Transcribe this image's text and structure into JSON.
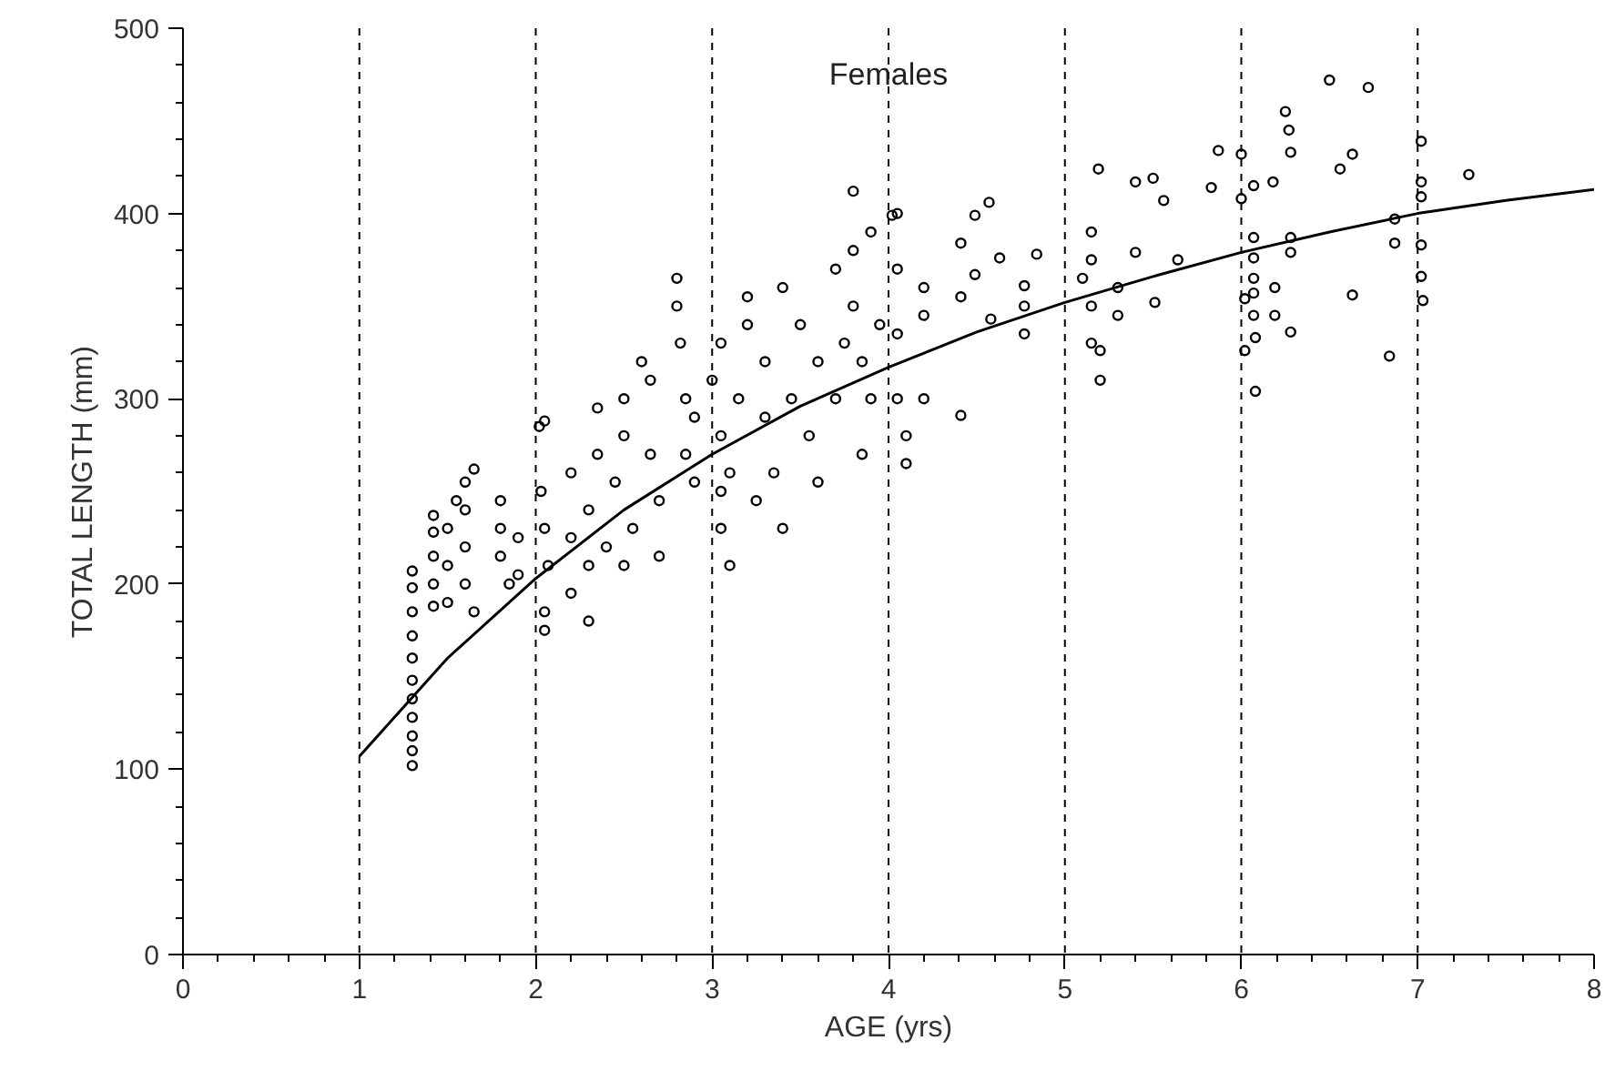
{
  "chart_data": {
    "type": "scatter",
    "title": "Females",
    "xlabel": "AGE (yrs)",
    "ylabel": "TOTAL LENGTH (mm)",
    "xlim": [
      0,
      8
    ],
    "ylim": [
      0,
      500
    ],
    "xticks": [
      0,
      {
        "value": 0.2,
        "label": null
      },
      {
        "value": 0.4,
        "label": null
      },
      {
        "value": 0.6,
        "label": null
      },
      {
        "value": 0.8,
        "label": null
      },
      1,
      {
        "value": 1.2,
        "label": null
      },
      {
        "value": 1.4,
        "label": null
      },
      {
        "value": 1.6,
        "label": null
      },
      {
        "value": 1.8,
        "label": null
      },
      2,
      {
        "value": 2.2,
        "label": null
      },
      {
        "value": 2.4,
        "label": null
      },
      {
        "value": 2.6,
        "label": null
      },
      {
        "value": 2.8,
        "label": null
      },
      3,
      {
        "value": 3.2,
        "label": null
      },
      {
        "value": 3.4,
        "label": null
      },
      {
        "value": 3.6,
        "label": null
      },
      {
        "value": 3.8,
        "label": null
      },
      4,
      {
        "value": 4.2,
        "label": null
      },
      {
        "value": 4.4,
        "label": null
      },
      {
        "value": 4.6,
        "label": null
      },
      {
        "value": 4.8,
        "label": null
      },
      5,
      {
        "value": 5.2,
        "label": null
      },
      {
        "value": 5.4,
        "label": null
      },
      {
        "value": 5.6,
        "label": null
      },
      {
        "value": 5.8,
        "label": null
      },
      6,
      {
        "value": 6.2,
        "label": null
      },
      {
        "value": 6.4,
        "label": null
      },
      {
        "value": 6.6,
        "label": null
      },
      {
        "value": 6.8,
        "label": null
      },
      7,
      {
        "value": 7.2,
        "label": null
      },
      {
        "value": 7.4,
        "label": null
      },
      {
        "value": 7.6,
        "label": null
      },
      {
        "value": 7.8,
        "label": null
      },
      8
    ],
    "yticks": [
      0,
      {
        "value": 20,
        "label": null
      },
      {
        "value": 40,
        "label": null
      },
      {
        "value": 60,
        "label": null
      },
      {
        "value": 80,
        "label": null
      },
      100,
      {
        "value": 120,
        "label": null
      },
      {
        "value": 140,
        "label": null
      },
      {
        "value": 160,
        "label": null
      },
      {
        "value": 180,
        "label": null
      },
      200,
      {
        "value": 220,
        "label": null
      },
      {
        "value": 240,
        "label": null
      },
      {
        "value": 260,
        "label": null
      },
      {
        "value": 280,
        "label": null
      },
      300,
      {
        "value": 320,
        "label": null
      },
      {
        "value": 340,
        "label": null
      },
      {
        "value": 360,
        "label": null
      },
      {
        "value": 380,
        "label": null
      },
      400,
      {
        "value": 420,
        "label": null
      },
      {
        "value": 440,
        "label": null
      },
      {
        "value": 460,
        "label": null
      },
      {
        "value": 480,
        "label": null
      },
      500
    ],
    "grid": false,
    "ref_lines": [
      {
        "axis": "x",
        "value": 1,
        "color": "#000000",
        "line_style": "dashed"
      },
      {
        "axis": "x",
        "value": 2,
        "color": "#000000",
        "line_style": "dashed"
      },
      {
        "axis": "x",
        "value": 3,
        "color": "#000000",
        "line_style": "dashed"
      },
      {
        "axis": "x",
        "value": 4,
        "color": "#000000",
        "line_style": "dashed"
      },
      {
        "axis": "x",
        "value": 5,
        "color": "#000000",
        "line_style": "dashed"
      },
      {
        "axis": "x",
        "value": 6,
        "color": "#000000",
        "line_style": "dashed"
      },
      {
        "axis": "x",
        "value": 7,
        "color": "#000000",
        "line_style": "dashed"
      }
    ],
    "series": [
      {
        "type": "scatter",
        "marker": "circle",
        "color": "#000000",
        "x": [
          1.3,
          1.3,
          1.3,
          1.3,
          1.3,
          1.3,
          1.3,
          1.3,
          1.3,
          1.3,
          1.3,
          1.42,
          1.42,
          1.42,
          1.42,
          1.42,
          1.5,
          1.5,
          1.5,
          1.55,
          1.6,
          1.6,
          1.6,
          1.6,
          1.65,
          1.65,
          1.8,
          1.8,
          1.8,
          1.9,
          1.9,
          1.85,
          2.02,
          2.05,
          2.03,
          2.05,
          2.07,
          2.05,
          2.05,
          2.2,
          2.2,
          2.2,
          2.3,
          2.3,
          2.3,
          2.35,
          2.35,
          2.4,
          2.45,
          2.5,
          2.5,
          2.5,
          2.55,
          2.6,
          2.65,
          2.65,
          2.7,
          2.7,
          2.8,
          2.8,
          2.82,
          2.85,
          2.85,
          2.9,
          2.9,
          3.05,
          3.05,
          3.05,
          3.0,
          3.05,
          3.1,
          3.1,
          3.15,
          3.2,
          3.2,
          3.25,
          3.3,
          3.3,
          3.35,
          3.4,
          3.4,
          3.45,
          3.5,
          3.55,
          3.6,
          3.6,
          3.7,
          3.7,
          3.75,
          3.8,
          3.8,
          3.8,
          3.85,
          3.85,
          3.9,
          3.9,
          3.95,
          4.05,
          4.05,
          4.05,
          4.05,
          4.1,
          4.1,
          4.2,
          4.2,
          4.2,
          4.02,
          4.49,
          4.57,
          4.41,
          4.63,
          4.49,
          4.41,
          4.58,
          4.77,
          4.77,
          4.77,
          4.84,
          4.41,
          5.15,
          5.15,
          5.1,
          5.15,
          5.15,
          5.3,
          5.3,
          5.19,
          5.4,
          5.5,
          5.56,
          5.83,
          5.87,
          5.4,
          5.64,
          5.51,
          5.2,
          5.2,
          6.0,
          6.28,
          6.63,
          6.56,
          6.18,
          6.07,
          6.0,
          6.07,
          6.28,
          6.07,
          6.28,
          6.07,
          6.07,
          6.19,
          6.02,
          6.07,
          6.19,
          6.28,
          6.08,
          6.02,
          6.08,
          6.63,
          6.84,
          6.87,
          6.87,
          6.25,
          6.27,
          6.5,
          6.72,
          7.02,
          7.02,
          7.02,
          7.02,
          7.02,
          7.03,
          7.29
        ],
        "values": [
          102,
          110,
          118,
          128,
          138,
          148,
          160,
          172,
          185,
          198,
          207,
          188,
          200,
          215,
          228,
          237,
          190,
          210,
          230,
          245,
          200,
          220,
          240,
          255,
          185,
          262,
          215,
          230,
          245,
          205,
          225,
          200,
          285,
          288,
          250,
          230,
          210,
          185,
          175,
          195,
          225,
          260,
          180,
          210,
          240,
          270,
          295,
          220,
          255,
          280,
          300,
          210,
          230,
          320,
          310,
          270,
          215,
          245,
          365,
          350,
          330,
          300,
          270,
          290,
          255,
          250,
          230,
          280,
          310,
          330,
          210,
          260,
          300,
          340,
          355,
          245,
          290,
          320,
          260,
          360,
          230,
          300,
          340,
          280,
          320,
          255,
          370,
          300,
          330,
          412,
          380,
          350,
          320,
          270,
          390,
          300,
          340,
          400,
          370,
          335,
          300,
          280,
          265,
          300,
          345,
          360,
          399,
          399,
          406,
          384,
          376,
          367,
          355,
          343,
          361,
          350,
          335,
          378,
          291,
          390,
          375,
          365,
          350,
          330,
          360,
          345,
          424,
          417,
          419,
          407,
          414,
          434,
          379,
          375,
          352,
          310,
          326,
          432,
          433,
          432,
          424,
          417,
          415,
          408,
          387,
          387,
          376,
          379,
          365,
          357,
          360,
          354,
          345,
          345,
          336,
          333,
          326,
          304,
          356,
          323,
          397,
          384,
          455,
          445,
          472,
          468,
          439,
          417,
          409,
          383,
          366,
          353,
          421
        ]
      },
      {
        "type": "line",
        "color": "#000000",
        "x": [
          1,
          1.5,
          2,
          2.5,
          3,
          3.5,
          4,
          4.5,
          5,
          5.5,
          6,
          6.5,
          7,
          7.5,
          8
        ],
        "values": [
          107,
          160,
          203,
          240,
          270,
          296,
          317,
          336,
          352,
          366,
          379,
          390,
          400,
          407,
          413
        ]
      }
    ]
  }
}
